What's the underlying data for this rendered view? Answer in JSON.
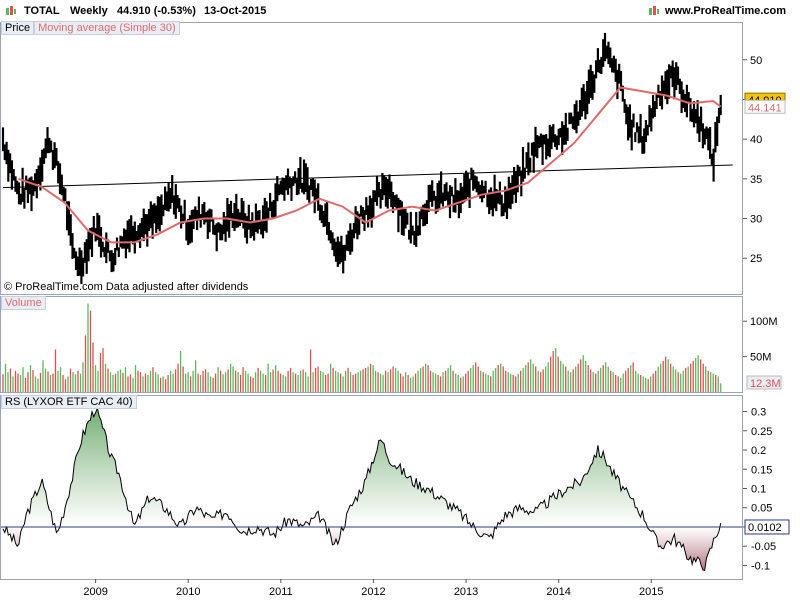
{
  "header": {
    "symbol": "TOTAL",
    "period": "Weekly",
    "last_price_change": "44.910 (-0.53%)",
    "date": "13-Oct-2015",
    "site": "www.ProRealTime.com"
  },
  "panes": {
    "price_label": "Price",
    "ma_label": "Moving average (Simple 30)",
    "copyright": "© ProRealTime.com  Data adjusted after dividends",
    "volume_label": "Volume",
    "rs_label": "RS (LYXOR ETF CAC 40)"
  },
  "colors": {
    "price": "#000000",
    "ma": "#e06a6a",
    "trendline": "#000000",
    "volume_up": "#5cb85c",
    "volume_down": "#d9534f",
    "rs_positive": "#5a9e5a",
    "rs_negative": "#a8606c",
    "last_price_badge": "#f5c400",
    "ma_badge_text": "#e06a6a",
    "pane_bg": "#e8edf6"
  },
  "chart_data": [
    {
      "type": "line",
      "title": "TOTAL Weekly",
      "xlabel": "",
      "ylabel": "",
      "ylim": [
        21,
        54
      ],
      "yticks": [
        25,
        30,
        35,
        40,
        45,
        50
      ],
      "xticks": [
        "2009",
        "2010",
        "2011",
        "2012",
        "2013",
        "2014",
        "2015"
      ],
      "last_price": "44.910",
      "last_ma": "44.141",
      "series": [
        {
          "name": "Price",
          "x": [
            "2008-01",
            "2008-03",
            "2008-05",
            "2008-07",
            "2008-09",
            "2008-10",
            "2008-11",
            "2009-01",
            "2009-03",
            "2009-05",
            "2009-07",
            "2009-09",
            "2009-11",
            "2010-01",
            "2010-03",
            "2010-05",
            "2010-07",
            "2010-09",
            "2010-11",
            "2011-01",
            "2011-03",
            "2011-05",
            "2011-07",
            "2011-08",
            "2011-09",
            "2011-11",
            "2012-01",
            "2012-03",
            "2012-05",
            "2012-06",
            "2012-08",
            "2012-10",
            "2012-12",
            "2013-02",
            "2013-04",
            "2013-06",
            "2013-08",
            "2013-10",
            "2013-12",
            "2014-02",
            "2014-04",
            "2014-06",
            "2014-07",
            "2014-09",
            "2014-10",
            "2014-12",
            "2015-02",
            "2015-04",
            "2015-06",
            "2015-08",
            "2015-09",
            "2015-10"
          ],
          "values": [
            40,
            33,
            34,
            40,
            33,
            26,
            24,
            29,
            25,
            28,
            29,
            30,
            33,
            29,
            31,
            28,
            31,
            29,
            30,
            34,
            35,
            34,
            30,
            27,
            25,
            30,
            32,
            34,
            30,
            28,
            32,
            33,
            32,
            35,
            33,
            32,
            35,
            39,
            40,
            41,
            44,
            49,
            51,
            47,
            42,
            40,
            46,
            48,
            44,
            41,
            37,
            44.9
          ]
        },
        {
          "name": "Moving average (Simple 30)",
          "x": [
            "2008-03",
            "2008-06",
            "2008-09",
            "2008-12",
            "2009-03",
            "2009-06",
            "2009-09",
            "2009-12",
            "2010-03",
            "2010-06",
            "2010-09",
            "2010-12",
            "2011-03",
            "2011-06",
            "2011-09",
            "2011-12",
            "2012-03",
            "2012-06",
            "2012-09",
            "2012-12",
            "2013-03",
            "2013-06",
            "2013-09",
            "2013-12",
            "2014-03",
            "2014-06",
            "2014-09",
            "2014-12",
            "2015-03",
            "2015-06",
            "2015-09",
            "2015-10"
          ],
          "values": [
            35,
            34,
            32,
            28.5,
            27,
            27,
            28,
            29.5,
            30,
            30,
            29.5,
            30,
            31,
            32.5,
            31.5,
            29.5,
            31,
            31.5,
            31,
            32,
            33,
            33.5,
            34.5,
            37,
            39.5,
            43,
            46.5,
            46,
            45.5,
            44.5,
            44.8,
            44.1
          ]
        },
        {
          "name": "Trendline",
          "x": [
            "2008-01",
            "2015-10"
          ],
          "values": [
            33.9,
            36.7
          ]
        }
      ]
    },
    {
      "type": "bar",
      "title": "Volume",
      "ylim": [
        0,
        130
      ],
      "yticks": [
        "50M",
        "100M"
      ],
      "last_value": "12.3M",
      "values": [
        25,
        40,
        28,
        33,
        22,
        30,
        26,
        24,
        35,
        20,
        28,
        38,
        31,
        22,
        19,
        27,
        45,
        33,
        29,
        24,
        26,
        60,
        30,
        35,
        24,
        18,
        22,
        33,
        28,
        25,
        30,
        26,
        42,
        80,
        125,
        115,
        70,
        38,
        30,
        55,
        62,
        40,
        33,
        28,
        24,
        26,
        30,
        32,
        27,
        35,
        22,
        25,
        20,
        38,
        30,
        28,
        22,
        26,
        24,
        30,
        35,
        28,
        25,
        20,
        22,
        18,
        24,
        30,
        26,
        32,
        40,
        58,
        36,
        26,
        28,
        22,
        30,
        45,
        26,
        24,
        30,
        32,
        28,
        22,
        20,
        26,
        35,
        30,
        25,
        28,
        32,
        40,
        36,
        30,
        28,
        24,
        35,
        30,
        26,
        22,
        20,
        28,
        34,
        30,
        26,
        24,
        40,
        28,
        32,
        38,
        30,
        26,
        24,
        22,
        30,
        34,
        28,
        26,
        24,
        30,
        32,
        28,
        22,
        60,
        28,
        34,
        36,
        30,
        28,
        24,
        26,
        40,
        34,
        30,
        28,
        26,
        22,
        30,
        34,
        28,
        24,
        26,
        28,
        30,
        32,
        34,
        36,
        40,
        38,
        30,
        28,
        26,
        24,
        30,
        28,
        32,
        36,
        34,
        30,
        26,
        22,
        28,
        24,
        20,
        22,
        26,
        30,
        34,
        36,
        40,
        38,
        30,
        28,
        26,
        24,
        22,
        28,
        30,
        34,
        38,
        30,
        26,
        24,
        20,
        22,
        26,
        30,
        34,
        38,
        42,
        36,
        30,
        28,
        26,
        24,
        22,
        30,
        34,
        38,
        40,
        36,
        30,
        28,
        26,
        24,
        22,
        26,
        30,
        34,
        38,
        42,
        46,
        40,
        36,
        30,
        28,
        32,
        36,
        42,
        50,
        58,
        62,
        50,
        44,
        40,
        36,
        30,
        28,
        32,
        36,
        40,
        46,
        52,
        44,
        38,
        32,
        28,
        26,
        30,
        34,
        38,
        42,
        36,
        30,
        28,
        24,
        22,
        20,
        26,
        30,
        34,
        38,
        42,
        30,
        26,
        24,
        22,
        20,
        18,
        22,
        26,
        30,
        36,
        40,
        44,
        50,
        46,
        40,
        36,
        32,
        28,
        26,
        30,
        34,
        36,
        40,
        44,
        48,
        52,
        46,
        40,
        36,
        30,
        28,
        26,
        24,
        22,
        12.3
      ],
      "x_start": "2008-01",
      "x_end": "2015-10"
    },
    {
      "type": "area",
      "title": "RS (LYXOR ETF CAC 40)",
      "ylim": [
        -0.13,
        0.33
      ],
      "yticks": [
        -0.1,
        -0.05,
        0,
        0.05,
        0.1,
        0.15,
        0.2,
        0.25,
        0.3
      ],
      "last_value": "0.0102",
      "x": [
        "2008-01",
        "2008-03",
        "2008-04",
        "2008-06",
        "2008-08",
        "2008-09",
        "2008-10",
        "2008-11",
        "2008-12",
        "2009-01",
        "2009-02",
        "2009-03",
        "2009-04",
        "2009-06",
        "2009-08",
        "2009-10",
        "2009-12",
        "2010-02",
        "2010-04",
        "2010-06",
        "2010-08",
        "2010-10",
        "2010-12",
        "2011-02",
        "2011-04",
        "2011-06",
        "2011-08",
        "2011-10",
        "2011-12",
        "2012-01",
        "2012-02",
        "2012-03",
        "2012-04",
        "2012-06",
        "2012-08",
        "2012-10",
        "2012-12",
        "2013-02",
        "2013-04",
        "2013-06",
        "2013-08",
        "2013-10",
        "2013-12",
        "2014-02",
        "2014-04",
        "2014-06",
        "2014-07",
        "2014-08",
        "2014-10",
        "2014-12",
        "2015-02",
        "2015-04",
        "2015-06",
        "2015-08",
        "2015-09",
        "2015-10"
      ],
      "values": [
        0.0,
        -0.05,
        0.03,
        0.12,
        -0.02,
        0.05,
        0.13,
        0.22,
        0.27,
        0.31,
        0.25,
        0.18,
        0.14,
        0.0,
        0.08,
        0.05,
        0.0,
        0.05,
        0.02,
        0.04,
        -0.01,
        0.0,
        -0.02,
        0.02,
        0.0,
        0.03,
        -0.05,
        0.05,
        0.12,
        0.18,
        0.23,
        0.18,
        0.16,
        0.12,
        0.1,
        0.07,
        0.04,
        0.0,
        -0.03,
        0.03,
        0.05,
        0.04,
        0.07,
        0.1,
        0.12,
        0.2,
        0.18,
        0.14,
        0.08,
        0.03,
        -0.05,
        -0.03,
        -0.08,
        -0.1,
        -0.04,
        0.0102
      ]
    }
  ]
}
